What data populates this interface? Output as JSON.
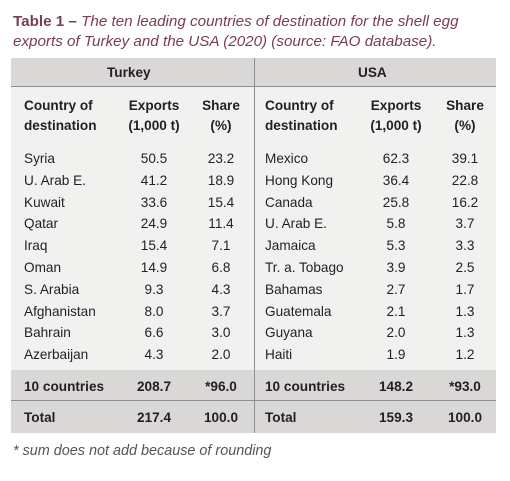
{
  "caption": {
    "label": "Table 1 –",
    "text": "The ten leading countries of destination for the shell egg exports of Turkey and the USA (2020) (source: FAO database)."
  },
  "table": {
    "groups": [
      "Turkey",
      "USA"
    ],
    "headers": {
      "country_line1": "Country of",
      "country_line2": "destination",
      "exports_line1": "Exports",
      "exports_line2": "(1,000 t)",
      "share_line1": "Share",
      "share_line2": "(%)"
    },
    "turkey_rows": [
      {
        "country": "Syria",
        "exports": "50.5",
        "share": "23.2"
      },
      {
        "country": "U. Arab E.",
        "exports": "41.2",
        "share": "18.9"
      },
      {
        "country": "Kuwait",
        "exports": "33.6",
        "share": "15.4"
      },
      {
        "country": "Qatar",
        "exports": "24.9",
        "share": "11.4"
      },
      {
        "country": "Iraq",
        "exports": "15.4",
        "share": "7.1"
      },
      {
        "country": "Oman",
        "exports": "14.9",
        "share": "6.8"
      },
      {
        "country": "S. Arabia",
        "exports": "9.3",
        "share": "4.3"
      },
      {
        "country": "Afghanistan",
        "exports": "8.0",
        "share": "3.7"
      },
      {
        "country": "Bahrain",
        "exports": "6.6",
        "share": "3.0"
      },
      {
        "country": "Azerbaijan",
        "exports": "4.3",
        "share": "2.0"
      }
    ],
    "usa_rows": [
      {
        "country": "Mexico",
        "exports": "62.3",
        "share": "39.1"
      },
      {
        "country": "Hong Kong",
        "exports": "36.4",
        "share": "22.8"
      },
      {
        "country": "Canada",
        "exports": "25.8",
        "share": "16.2"
      },
      {
        "country": "U. Arab E.",
        "exports": "5.8",
        "share": "3.7"
      },
      {
        "country": "Jamaica",
        "exports": "5.3",
        "share": "3.3"
      },
      {
        "country": "Tr. a. Tobago",
        "exports": "3.9",
        "share": "2.5"
      },
      {
        "country": "Bahamas",
        "exports": "2.7",
        "share": "1.7"
      },
      {
        "country": "Guatemala",
        "exports": "2.1",
        "share": "1.3"
      },
      {
        "country": "Guyana",
        "exports": "2.0",
        "share": "1.3"
      },
      {
        "country": "Haiti",
        "exports": "1.9",
        "share": "1.2"
      }
    ],
    "ten_countries": {
      "turkey": {
        "label": "10 countries",
        "exports": "208.7",
        "share": "*96.0"
      },
      "usa": {
        "label": "10 countries",
        "exports": "148.2",
        "share": "*93.0"
      }
    },
    "total": {
      "turkey": {
        "label": "Total",
        "exports": "217.4",
        "share": "100.0"
      },
      "usa": {
        "label": "Total",
        "exports": "159.3",
        "share": "100.0"
      }
    }
  },
  "footnote": "* sum does not add because of rounding",
  "colors": {
    "caption": "#7a3d52",
    "band": "#d9d8d6",
    "body": "#f1f1f0"
  }
}
